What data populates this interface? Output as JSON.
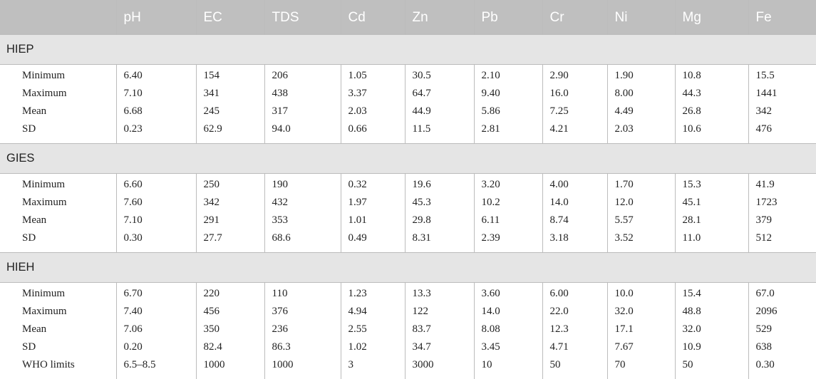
{
  "table": {
    "headers": [
      "",
      "pH",
      "EC",
      "TDS",
      "Cd",
      "Zn",
      "Pb",
      "Cr",
      "Ni",
      "Mg",
      "Fe"
    ],
    "groups": [
      {
        "name": "HIEP",
        "rows": [
          {
            "label": "Minimum",
            "values": [
              "6.40",
              "154",
              "206",
              "1.05",
              "30.5",
              "2.10",
              "2.90",
              "1.90",
              "10.8",
              "15.5"
            ]
          },
          {
            "label": "Maximum",
            "values": [
              "7.10",
              "341",
              "438",
              "3.37",
              "64.7",
              "9.40",
              "16.0",
              "8.00",
              "44.3",
              "1441"
            ]
          },
          {
            "label": "Mean",
            "values": [
              "6.68",
              "245",
              "317",
              "2.03",
              "44.9",
              "5.86",
              "7.25",
              "4.49",
              "26.8",
              "342"
            ]
          },
          {
            "label": "SD",
            "values": [
              "0.23",
              "62.9",
              "94.0",
              "0.66",
              "11.5",
              "2.81",
              "4.21",
              "2.03",
              "10.6",
              "476"
            ]
          }
        ]
      },
      {
        "name": "GIES",
        "rows": [
          {
            "label": "Minimum",
            "values": [
              "6.60",
              "250",
              "190",
              "0.32",
              "19.6",
              "3.20",
              "4.00",
              "1.70",
              "15.3",
              "41.9"
            ]
          },
          {
            "label": "Maximum",
            "values": [
              "7.60",
              "342",
              "432",
              "1.97",
              "45.3",
              "10.2",
              "14.0",
              "12.0",
              "45.1",
              "1723"
            ]
          },
          {
            "label": "Mean",
            "values": [
              "7.10",
              "291",
              "353",
              "1.01",
              "29.8",
              "6.11",
              "8.74",
              "5.57",
              "28.1",
              "379"
            ]
          },
          {
            "label": "SD",
            "values": [
              "0.30",
              "27.7",
              "68.6",
              "0.49",
              "8.31",
              "2.39",
              "3.18",
              "3.52",
              "11.0",
              "512"
            ]
          }
        ]
      },
      {
        "name": "HIEH",
        "rows": [
          {
            "label": "Minimum",
            "values": [
              "6.70",
              "220",
              "110",
              "1.23",
              "13.3",
              "3.60",
              "6.00",
              "10.0",
              "15.4",
              "67.0"
            ]
          },
          {
            "label": "Maximum",
            "values": [
              "7.40",
              "456",
              "376",
              "4.94",
              "122",
              "14.0",
              "22.0",
              "32.0",
              "48.8",
              "2096"
            ]
          },
          {
            "label": "Mean",
            "values": [
              "7.06",
              "350",
              "236",
              "2.55",
              "83.7",
              "8.08",
              "12.3",
              "17.1",
              "32.0",
              "529"
            ]
          },
          {
            "label": "SD",
            "values": [
              "0.20",
              "82.4",
              "86.3",
              "1.02",
              "34.7",
              "3.45",
              "4.71",
              "7.67",
              "10.9",
              "638"
            ]
          },
          {
            "label": "WHO limits",
            "values": [
              "6.5–8.5",
              "1000",
              "1000",
              "3",
              "3000",
              "10",
              "50",
              "70",
              "50",
              "0.30"
            ]
          }
        ]
      }
    ]
  }
}
